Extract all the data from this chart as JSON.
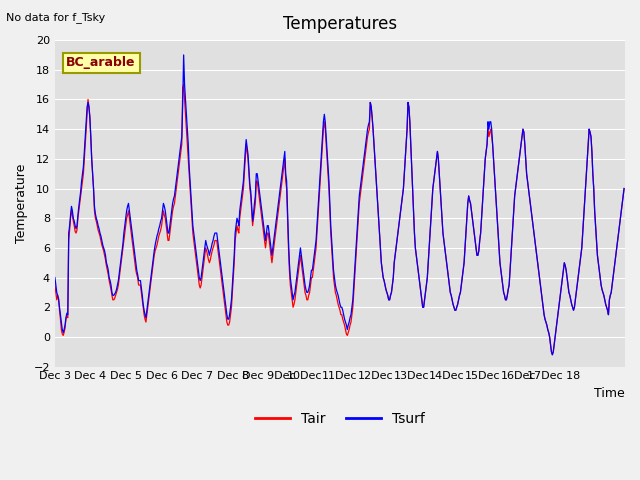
{
  "title": "Temperatures",
  "xlabel": "Time",
  "ylabel": "Temperature",
  "ylim": [
    -2,
    20
  ],
  "fig_bg_color": "#f0f0f0",
  "plot_bg": "#e0e0e0",
  "grid_color": "white",
  "tair_color": "red",
  "tsurf_color": "blue",
  "note": "No data for f_Tsky",
  "legend_location_label": "BC_arable",
  "xtick_labels": [
    "Dec 3",
    "Dec 4",
    "Dec 5",
    "Dec 6",
    "Dec 7",
    "Dec 8",
    "Dec 9Dec",
    "10Dec",
    "11Dec",
    "12Dec",
    "13Dec",
    "14Dec",
    "15Dec",
    "16Dec",
    "17Dec 18"
  ],
  "n_days": 16,
  "tair": [
    3.5,
    3.0,
    2.5,
    2.8,
    2.6,
    1.8,
    1.2,
    0.5,
    0.2,
    0.1,
    0.3,
    0.6,
    1.2,
    1.4,
    1.3,
    6.5,
    7.2,
    8.0,
    8.5,
    8.2,
    7.8,
    7.5,
    7.1,
    7.0,
    7.2,
    8.0,
    8.5,
    9.0,
    9.5,
    10.0,
    10.5,
    11.0,
    12.0,
    13.0,
    14.0,
    15.0,
    16.0,
    15.5,
    14.8,
    13.5,
    12.0,
    11.0,
    10.0,
    8.5,
    8.0,
    7.8,
    7.5,
    7.2,
    7.0,
    6.8,
    6.5,
    6.2,
    6.0,
    5.8,
    5.5,
    5.2,
    4.8,
    4.5,
    4.2,
    3.8,
    3.5,
    3.2,
    2.8,
    2.5,
    2.5,
    2.6,
    2.8,
    3.0,
    3.2,
    3.5,
    4.0,
    4.5,
    5.0,
    5.5,
    6.0,
    6.5,
    7.0,
    7.5,
    8.0,
    8.2,
    8.5,
    8.0,
    7.5,
    7.0,
    6.5,
    6.0,
    5.5,
    5.0,
    4.5,
    4.2,
    4.0,
    3.5,
    3.5,
    3.5,
    3.0,
    2.5,
    2.0,
    1.5,
    1.2,
    1.0,
    1.5,
    2.0,
    2.5,
    3.0,
    3.5,
    4.0,
    4.5,
    5.0,
    5.5,
    5.8,
    6.0,
    6.2,
    6.5,
    6.8,
    7.0,
    7.2,
    7.5,
    8.0,
    8.5,
    8.2,
    8.0,
    7.5,
    7.0,
    6.5,
    6.5,
    7.0,
    7.5,
    8.0,
    8.5,
    8.8,
    9.0,
    9.5,
    10.0,
    10.5,
    11.0,
    11.5,
    12.0,
    12.5,
    13.0,
    16.8,
    17.0,
    16.0,
    15.0,
    14.0,
    13.0,
    12.0,
    11.0,
    10.0,
    9.0,
    8.0,
    7.0,
    6.5,
    6.0,
    5.5,
    5.0,
    4.5,
    4.0,
    3.5,
    3.3,
    3.5,
    4.0,
    4.5,
    5.0,
    5.5,
    6.0,
    5.8,
    5.5,
    5.2,
    5.0,
    5.2,
    5.5,
    5.8,
    6.0,
    6.2,
    6.5,
    6.5,
    6.5,
    6.0,
    5.5,
    5.0,
    4.5,
    4.0,
    3.5,
    3.0,
    2.5,
    2.0,
    1.5,
    1.0,
    0.8,
    0.8,
    1.0,
    1.5,
    2.0,
    3.0,
    4.0,
    5.0,
    6.5,
    7.0,
    7.5,
    7.2,
    7.0,
    8.0,
    8.5,
    9.0,
    9.5,
    10.0,
    11.0,
    12.0,
    13.0,
    12.5,
    12.0,
    11.0,
    10.0,
    9.5,
    8.5,
    7.5,
    8.0,
    8.5,
    9.0,
    10.5,
    10.5,
    10.0,
    9.5,
    9.0,
    8.5,
    8.0,
    7.5,
    7.0,
    6.5,
    6.0,
    6.5,
    7.0,
    7.0,
    6.5,
    6.0,
    5.5,
    5.0,
    5.5,
    6.0,
    6.5,
    7.0,
    7.5,
    8.0,
    8.5,
    9.0,
    9.5,
    10.0,
    10.5,
    11.0,
    11.5,
    12.0,
    10.5,
    10.0,
    8.0,
    6.0,
    4.5,
    3.5,
    3.0,
    2.5,
    2.0,
    2.2,
    2.5,
    3.0,
    3.5,
    4.0,
    4.5,
    5.0,
    5.5,
    5.0,
    4.5,
    4.0,
    3.5,
    3.0,
    2.8,
    2.5,
    2.5,
    2.8,
    3.0,
    3.5,
    4.0,
    4.0,
    4.5,
    5.0,
    5.5,
    6.0,
    7.0,
    8.0,
    9.0,
    10.0,
    11.0,
    12.0,
    13.0,
    14.0,
    14.5,
    14.0,
    13.0,
    12.0,
    11.0,
    10.0,
    8.5,
    7.0,
    6.0,
    5.0,
    4.0,
    3.5,
    3.0,
    2.8,
    2.5,
    2.2,
    2.0,
    1.8,
    1.5,
    1.5,
    1.2,
    1.0,
    0.8,
    0.5,
    0.2,
    0.1,
    0.3,
    0.5,
    0.8,
    1.0,
    1.5,
    2.0,
    3.0,
    4.0,
    5.0,
    6.0,
    7.0,
    8.0,
    9.0,
    9.5,
    10.0,
    10.5,
    11.0,
    11.5,
    12.0,
    12.5,
    13.0,
    13.5,
    13.8,
    14.0,
    15.8,
    15.5,
    14.8,
    14.0,
    13.0,
    12.0,
    11.0,
    10.0,
    9.0,
    8.0,
    7.0,
    6.0,
    5.0,
    4.5,
    4.0,
    3.8,
    3.5,
    3.2,
    3.0,
    2.8,
    2.5,
    2.5,
    2.8,
    3.0,
    3.5,
    4.0,
    5.0,
    5.5,
    6.0,
    6.5,
    7.0,
    7.5,
    8.0,
    8.5,
    9.0,
    9.5,
    10.0,
    11.0,
    12.0,
    13.0,
    14.0,
    15.8,
    15.5,
    14.5,
    13.0,
    11.5,
    10.0,
    8.5,
    7.0,
    6.0,
    5.5,
    5.0,
    4.5,
    4.0,
    3.5,
    3.0,
    2.5,
    2.0,
    2.0,
    2.5,
    3.0,
    3.5,
    4.0,
    5.0,
    6.0,
    7.0,
    8.0,
    9.0,
    10.0,
    10.5,
    11.0,
    11.5,
    12.0,
    12.5,
    12.0,
    11.0,
    10.0,
    9.0,
    8.0,
    7.0,
    6.5,
    6.0,
    5.5,
    5.0,
    4.5,
    4.0,
    3.5,
    3.0,
    2.8,
    2.5,
    2.2,
    2.0,
    1.8,
    1.8,
    2.0,
    2.2,
    2.5,
    2.8,
    3.0,
    3.5,
    4.0,
    4.5,
    5.0,
    6.0,
    7.0,
    8.0,
    9.0,
    9.5,
    9.2,
    9.0,
    8.5,
    8.0,
    7.5,
    7.0,
    6.5,
    6.0,
    5.5,
    5.5,
    5.8,
    6.5,
    7.0,
    8.0,
    9.0,
    10.0,
    11.0,
    12.0,
    12.5,
    13.0,
    14.0,
    13.5,
    13.8,
    14.0,
    13.5,
    13.0,
    12.0,
    11.0,
    10.0,
    9.0,
    8.0,
    7.0,
    6.0,
    5.0,
    4.5,
    4.0,
    3.5,
    3.0,
    2.8,
    2.5,
    2.5,
    2.8,
    3.2,
    3.5,
    4.5,
    5.5,
    6.5,
    7.5,
    8.5,
    9.5,
    10.0,
    10.5,
    11.0,
    11.5,
    12.0,
    12.5,
    13.0,
    13.5,
    14.0,
    13.8,
    13.0,
    12.0,
    11.0,
    10.5,
    10.0,
    9.5,
    9.0,
    8.5,
    8.0,
    7.5,
    7.0,
    6.5,
    6.0,
    5.5,
    5.0,
    4.5,
    4.0,
    3.5,
    3.0,
    2.5,
    2.0,
    1.5,
    1.2,
    1.0,
    0.8,
    0.5,
    0.3,
    0.0,
    -0.5,
    -1.0,
    -1.2,
    -1.0,
    -0.5,
    0.0,
    0.5,
    1.0,
    1.5,
    2.0,
    2.5,
    3.0,
    3.5,
    4.0,
    4.5,
    5.0,
    4.8,
    4.5,
    4.0,
    3.5,
    3.0,
    2.8,
    2.5,
    2.2,
    2.0,
    1.8,
    2.0,
    2.5,
    3.0,
    3.5,
    4.0,
    4.5,
    5.0,
    5.5,
    6.0,
    7.0,
    8.0,
    9.0,
    10.0,
    11.0,
    12.0,
    13.0,
    14.0,
    13.8,
    13.5,
    12.5,
    11.0,
    10.0,
    8.5,
    7.5,
    6.5,
    5.5,
    5.0,
    4.5,
    4.0,
    3.5,
    3.2,
    3.0,
    2.8,
    2.5,
    2.2,
    2.0,
    1.8,
    1.5,
    2.5,
    2.8,
    3.0,
    3.5,
    4.0,
    4.5,
    5.0,
    5.5,
    6.0,
    6.5,
    7.0,
    7.5,
    8.0,
    8.5,
    9.0,
    9.5,
    10.0
  ],
  "tsurf": [
    4.0,
    3.5,
    3.0,
    2.8,
    2.5,
    2.0,
    1.5,
    1.0,
    0.5,
    0.3,
    0.5,
    0.8,
    1.3,
    1.6,
    1.5,
    7.0,
    7.5,
    8.2,
    8.8,
    8.5,
    8.0,
    7.8,
    7.5,
    7.3,
    7.5,
    8.2,
    8.8,
    9.3,
    9.8,
    10.5,
    11.0,
    11.5,
    12.5,
    13.5,
    14.5,
    15.5,
    15.8,
    15.5,
    14.8,
    13.5,
    12.0,
    11.0,
    10.0,
    8.8,
    8.3,
    8.0,
    7.8,
    7.5,
    7.3,
    7.0,
    6.8,
    6.5,
    6.2,
    6.0,
    5.8,
    5.5,
    5.0,
    4.8,
    4.5,
    4.0,
    3.8,
    3.5,
    3.0,
    2.8,
    2.8,
    2.9,
    3.0,
    3.2,
    3.5,
    3.8,
    4.3,
    4.8,
    5.3,
    5.8,
    6.3,
    7.0,
    7.5,
    8.0,
    8.5,
    8.8,
    9.0,
    8.5,
    8.0,
    7.5,
    7.0,
    6.5,
    6.0,
    5.5,
    5.0,
    4.5,
    4.2,
    3.8,
    3.8,
    3.8,
    3.3,
    2.8,
    2.2,
    1.8,
    1.5,
    1.3,
    1.8,
    2.3,
    2.8,
    3.3,
    3.8,
    4.3,
    4.8,
    5.3,
    5.8,
    6.2,
    6.5,
    6.8,
    7.0,
    7.3,
    7.5,
    7.8,
    8.0,
    8.5,
    9.0,
    8.8,
    8.5,
    8.0,
    7.5,
    7.0,
    7.0,
    7.5,
    8.0,
    8.5,
    9.0,
    9.3,
    9.5,
    10.0,
    10.5,
    11.0,
    11.5,
    12.0,
    12.5,
    13.0,
    13.5,
    15.8,
    19.0,
    17.0,
    16.0,
    15.0,
    14.0,
    13.0,
    11.5,
    10.5,
    9.5,
    8.5,
    7.5,
    7.0,
    6.5,
    6.0,
    5.5,
    5.0,
    4.5,
    4.0,
    3.8,
    4.0,
    4.5,
    5.0,
    5.5,
    6.0,
    6.5,
    6.2,
    6.0,
    5.8,
    5.5,
    5.8,
    6.0,
    6.3,
    6.5,
    6.8,
    7.0,
    7.0,
    7.0,
    6.5,
    6.0,
    5.5,
    5.0,
    4.5,
    4.0,
    3.5,
    3.0,
    2.5,
    2.0,
    1.5,
    1.2,
    1.2,
    1.5,
    2.0,
    2.5,
    3.5,
    4.5,
    5.5,
    7.0,
    7.5,
    8.0,
    7.8,
    7.5,
    8.5,
    9.0,
    9.5,
    10.0,
    10.5,
    11.5,
    12.5,
    13.3,
    12.8,
    12.3,
    11.3,
    10.3,
    9.8,
    8.8,
    7.8,
    8.3,
    9.0,
    9.5,
    11.0,
    11.0,
    10.5,
    10.0,
    9.5,
    9.0,
    8.5,
    8.0,
    7.5,
    7.0,
    6.5,
    7.0,
    7.5,
    7.5,
    7.0,
    6.5,
    6.0,
    5.5,
    6.0,
    6.5,
    7.0,
    7.5,
    8.0,
    8.5,
    9.0,
    9.5,
    10.0,
    10.5,
    11.0,
    11.5,
    12.0,
    12.5,
    11.0,
    10.5,
    8.5,
    6.5,
    5.0,
    4.0,
    3.5,
    3.0,
    2.5,
    2.8,
    3.0,
    3.5,
    4.0,
    4.5,
    5.0,
    5.5,
    6.0,
    5.5,
    5.0,
    4.5,
    4.0,
    3.5,
    3.2,
    3.0,
    3.0,
    3.2,
    3.5,
    4.0,
    4.5,
    4.5,
    5.0,
    5.5,
    6.0,
    6.5,
    7.5,
    8.5,
    9.5,
    10.5,
    11.5,
    12.5,
    13.5,
    14.5,
    15.0,
    14.5,
    13.5,
    12.5,
    11.5,
    10.5,
    9.0,
    7.5,
    6.5,
    5.5,
    4.5,
    4.0,
    3.5,
    3.2,
    3.0,
    2.8,
    2.5,
    2.2,
    2.0,
    2.0,
    1.8,
    1.5,
    1.2,
    1.0,
    0.8,
    0.5,
    0.8,
    1.0,
    1.3,
    1.5,
    2.0,
    2.5,
    3.5,
    4.5,
    5.5,
    6.5,
    7.5,
    8.5,
    9.5,
    10.0,
    10.5,
    11.0,
    11.5,
    12.0,
    12.5,
    13.0,
    13.5,
    14.0,
    14.3,
    14.5,
    15.8,
    15.5,
    14.8,
    14.0,
    13.0,
    12.0,
    11.0,
    10.0,
    9.0,
    8.0,
    7.0,
    6.0,
    5.0,
    4.5,
    4.0,
    3.8,
    3.5,
    3.2,
    3.0,
    2.8,
    2.5,
    2.5,
    2.8,
    3.0,
    3.5,
    4.0,
    5.0,
    5.5,
    6.0,
    6.5,
    7.0,
    7.5,
    8.0,
    8.5,
    9.0,
    9.5,
    10.0,
    11.0,
    12.0,
    13.0,
    14.0,
    15.8,
    15.5,
    14.5,
    13.0,
    11.5,
    10.0,
    8.5,
    7.0,
    6.0,
    5.5,
    5.0,
    4.5,
    4.0,
    3.5,
    3.0,
    2.5,
    2.0,
    2.0,
    2.5,
    3.0,
    3.5,
    4.0,
    5.0,
    6.0,
    7.0,
    8.0,
    9.0,
    10.0,
    10.5,
    11.0,
    11.5,
    12.0,
    12.5,
    12.0,
    11.0,
    10.0,
    9.0,
    8.0,
    7.0,
    6.5,
    6.0,
    5.5,
    5.0,
    4.5,
    4.0,
    3.5,
    3.0,
    2.8,
    2.5,
    2.2,
    2.0,
    1.8,
    1.8,
    2.0,
    2.2,
    2.5,
    2.8,
    3.0,
    3.5,
    4.0,
    4.5,
    5.0,
    6.0,
    7.0,
    8.0,
    9.0,
    9.5,
    9.2,
    9.0,
    8.5,
    8.0,
    7.5,
    7.0,
    6.5,
    6.0,
    5.5,
    5.5,
    5.8,
    6.5,
    7.0,
    8.0,
    9.0,
    10.0,
    11.0,
    12.0,
    12.5,
    13.0,
    14.5,
    14.0,
    14.5,
    14.5,
    14.0,
    13.0,
    12.0,
    11.0,
    10.0,
    9.0,
    8.0,
    7.0,
    6.0,
    5.0,
    4.5,
    4.0,
    3.5,
    3.0,
    2.8,
    2.5,
    2.5,
    2.8,
    3.2,
    3.5,
    4.5,
    5.5,
    6.5,
    7.5,
    8.5,
    9.5,
    10.0,
    10.5,
    11.0,
    11.5,
    12.0,
    12.5,
    13.0,
    13.5,
    14.0,
    13.8,
    13.0,
    12.0,
    11.0,
    10.5,
    10.0,
    9.5,
    9.0,
    8.5,
    8.0,
    7.5,
    7.0,
    6.5,
    6.0,
    5.5,
    5.0,
    4.5,
    4.0,
    3.5,
    3.0,
    2.5,
    2.0,
    1.5,
    1.2,
    1.0,
    0.8,
    0.5,
    0.3,
    0.0,
    -0.5,
    -1.0,
    -1.2,
    -1.0,
    -0.5,
    0.0,
    0.5,
    1.0,
    1.5,
    2.0,
    2.5,
    3.0,
    3.5,
    4.0,
    4.5,
    5.0,
    4.8,
    4.5,
    4.0,
    3.5,
    3.0,
    2.8,
    2.5,
    2.2,
    2.0,
    1.8,
    2.0,
    2.5,
    3.0,
    3.5,
    4.0,
    4.5,
    5.0,
    5.5,
    6.0,
    7.0,
    8.0,
    9.0,
    10.0,
    11.0,
    12.0,
    13.0,
    14.0,
    13.8,
    13.5,
    12.5,
    11.0,
    10.0,
    8.5,
    7.5,
    6.5,
    5.5,
    5.0,
    4.5,
    4.0,
    3.5,
    3.2,
    3.0,
    2.8,
    2.5,
    2.2,
    2.0,
    1.8,
    1.5,
    2.5,
    2.8,
    3.0,
    3.5,
    4.0,
    4.5,
    5.0,
    5.5,
    6.0,
    6.5,
    7.0,
    7.5,
    8.0,
    8.5,
    9.0,
    9.5,
    10.0
  ]
}
